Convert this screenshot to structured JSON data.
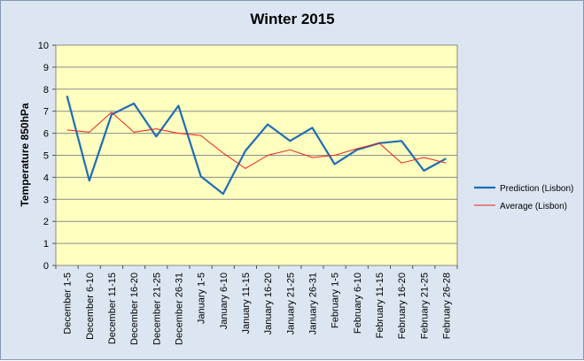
{
  "chart_data": {
    "type": "line",
    "title": "Winter 2015",
    "xlabel": "",
    "ylabel": "Temperature 850hPa",
    "ylim": [
      0,
      10
    ],
    "yticks": [
      "0",
      "1",
      "2",
      "3",
      "4",
      "5",
      "6",
      "7",
      "8",
      "9",
      "10"
    ],
    "grid": true,
    "legend_position": "right",
    "plot_background": "#ffffc0",
    "categories": [
      "December 1-5",
      "December 6-10",
      "December 11-15",
      "December 16-20",
      "December 21-25",
      "December 26-31",
      "January 1-5",
      "January 6-10",
      "January 11-15",
      "January 16-20",
      "January 21-25",
      "January 26-31",
      "February 1-5",
      "February 6-10",
      "February 11-15",
      "February 16-20",
      "February 21-25",
      "February 26-28"
    ],
    "series": [
      {
        "name": "Prediction (Lisbon)",
        "color": "#1f6db5",
        "values": [
          7.7,
          3.85,
          6.85,
          7.35,
          5.85,
          7.25,
          4.05,
          3.25,
          5.2,
          6.4,
          5.65,
          6.25,
          4.6,
          5.25,
          5.55,
          5.65,
          4.3,
          4.85
        ]
      },
      {
        "name": "Average (Lisbon)",
        "color": "#e8201c",
        "values": [
          6.15,
          6.05,
          6.95,
          6.05,
          6.2,
          6.0,
          5.9,
          5.1,
          4.4,
          5.0,
          5.25,
          4.9,
          5.0,
          5.3,
          5.55,
          4.65,
          4.9,
          4.65
        ]
      }
    ]
  }
}
